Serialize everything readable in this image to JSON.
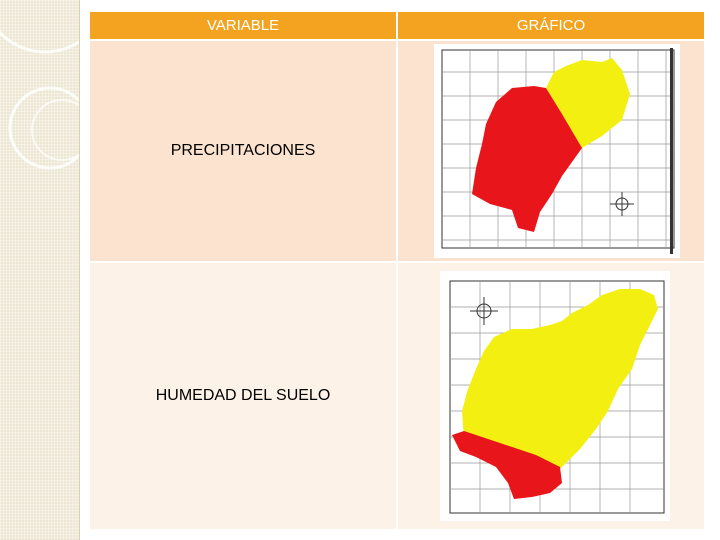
{
  "table": {
    "headers": {
      "variable": "VARIABLE",
      "grafico": "GRÁFICO"
    },
    "rows": [
      {
        "variable": "PRECIPITACIONES",
        "map_icon": "map-precipitaciones"
      },
      {
        "variable": "HUMEDAD DEL SUELO",
        "map_icon": "map-humedad-suelo"
      }
    ]
  },
  "colors": {
    "header": "#f4a321",
    "row1": "#fbe3cf",
    "row2": "#fdf2e8",
    "red_zone": "#e8161a",
    "yellow_zone": "#f2ef11"
  }
}
